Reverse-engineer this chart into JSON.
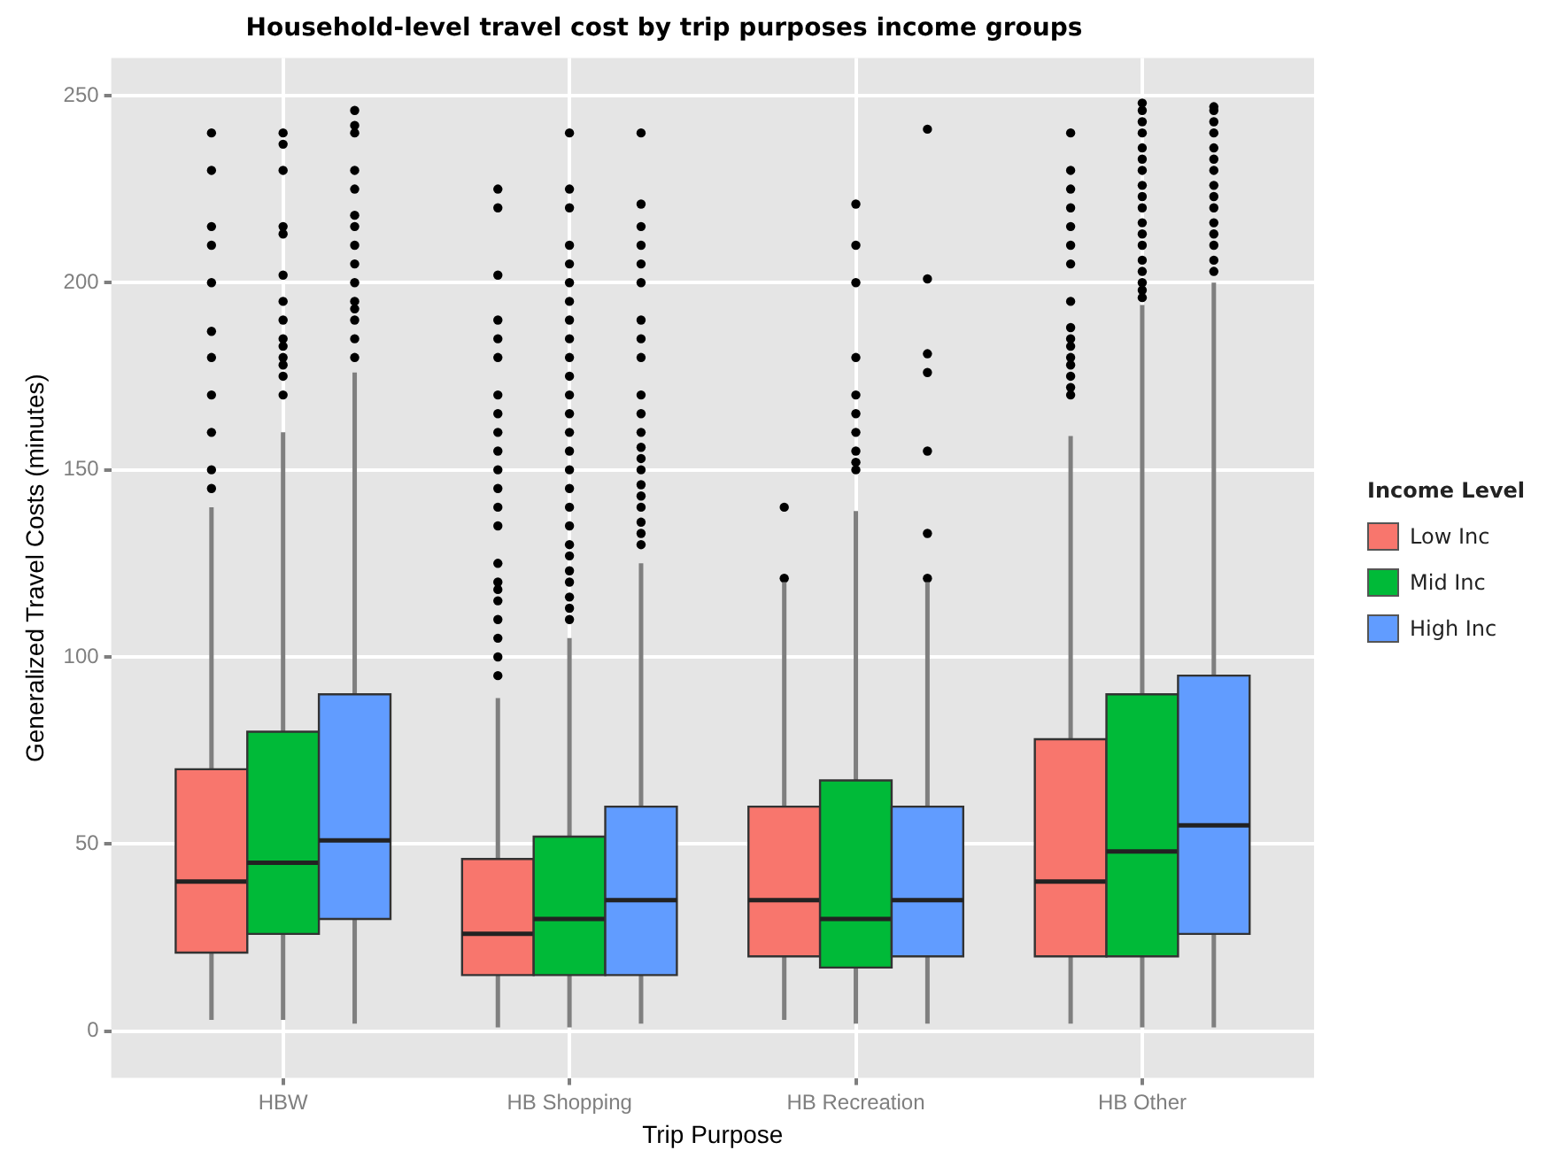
{
  "chart_data": {
    "type": "box",
    "title": "Household-level travel cost by trip purposes income groups",
    "xlabel": "Trip Purpose",
    "ylabel": "Generalized Travel Costs (minutes)",
    "legend_title": "Income Level",
    "categories": [
      "HBW",
      "HB Shopping",
      "HB Recreation",
      "HB Other"
    ],
    "ylim": [
      -12.5,
      260
    ],
    "yticks": [
      0,
      50,
      100,
      150,
      200,
      250
    ],
    "grid": true,
    "legend": "right",
    "series": [
      {
        "name": "Low Inc",
        "color": "#f8766d",
        "boxes": [
          {
            "low": 3,
            "q1": 21,
            "median": 40,
            "q3": 70,
            "high": 140,
            "outliers": [
              145,
              150,
              160,
              170,
              180,
              187,
              200,
              210,
              215,
              230,
              240
            ]
          },
          {
            "low": 1,
            "q1": 15,
            "median": 26,
            "q3": 46,
            "high": 89,
            "outliers": [
              95,
              100,
              105,
              110,
              115,
              118,
              120,
              125,
              135,
              140,
              145,
              150,
              155,
              160,
              165,
              170,
              180,
              185,
              190,
              202,
              220,
              225
            ]
          },
          {
            "low": 3,
            "q1": 20,
            "median": 35,
            "q3": 60,
            "high": 120,
            "outliers": [
              121,
              140
            ]
          },
          {
            "low": 2,
            "q1": 20,
            "median": 40,
            "q3": 78,
            "high": 159,
            "outliers": [
              170,
              172,
              175,
              178,
              180,
              183,
              185,
              188,
              195,
              205,
              210,
              215,
              220,
              225,
              230,
              240
            ]
          }
        ]
      },
      {
        "name": "Mid Inc",
        "color": "#00ba38",
        "boxes": [
          {
            "low": 3,
            "q1": 26,
            "median": 45,
            "q3": 80,
            "high": 160,
            "outliers": [
              170,
              175,
              178,
              180,
              183,
              185,
              190,
              195,
              202,
              213,
              215,
              230,
              237,
              240
            ]
          },
          {
            "low": 1,
            "q1": 15,
            "median": 30,
            "q3": 52,
            "high": 105,
            "outliers": [
              110,
              113,
              116,
              120,
              123,
              127,
              130,
              135,
              140,
              145,
              150,
              155,
              160,
              165,
              170,
              175,
              180,
              185,
              190,
              195,
              200,
              205,
              210,
              220,
              225,
              240
            ]
          },
          {
            "low": 2,
            "q1": 17,
            "median": 30,
            "q3": 67,
            "high": 139,
            "outliers": [
              150,
              152,
              155,
              160,
              165,
              170,
              180,
              200,
              210,
              221
            ]
          },
          {
            "low": 1,
            "q1": 20,
            "median": 48,
            "q3": 90,
            "high": 194,
            "outliers": [
              196,
              198,
              200,
              203,
              206,
              210,
              213,
              216,
              220,
              223,
              226,
              230,
              233,
              236,
              240,
              243,
              246,
              248
            ]
          }
        ]
      },
      {
        "name": "High Inc",
        "color": "#619cff",
        "boxes": [
          {
            "low": 2,
            "q1": 30,
            "median": 51,
            "q3": 90,
            "high": 176,
            "outliers": [
              180,
              185,
              190,
              193,
              195,
              200,
              205,
              210,
              215,
              218,
              225,
              230,
              240,
              242,
              246
            ]
          },
          {
            "low": 2,
            "q1": 15,
            "median": 35,
            "q3": 60,
            "high": 125,
            "outliers": [
              130,
              133,
              136,
              140,
              143,
              146,
              150,
              153,
              156,
              160,
              165,
              170,
              180,
              185,
              190,
              200,
              205,
              210,
              215,
              221,
              240
            ]
          },
          {
            "low": 2,
            "q1": 20,
            "median": 35,
            "q3": 60,
            "high": 120,
            "outliers": [
              121,
              133,
              155,
              176,
              181,
              201,
              241
            ]
          },
          {
            "low": 1,
            "q1": 26,
            "median": 55,
            "q3": 95,
            "high": 200,
            "outliers": [
              203,
              206,
              210,
              213,
              216,
              220,
              223,
              226,
              230,
              233,
              236,
              240,
              243,
              246,
              247
            ]
          }
        ]
      }
    ]
  }
}
